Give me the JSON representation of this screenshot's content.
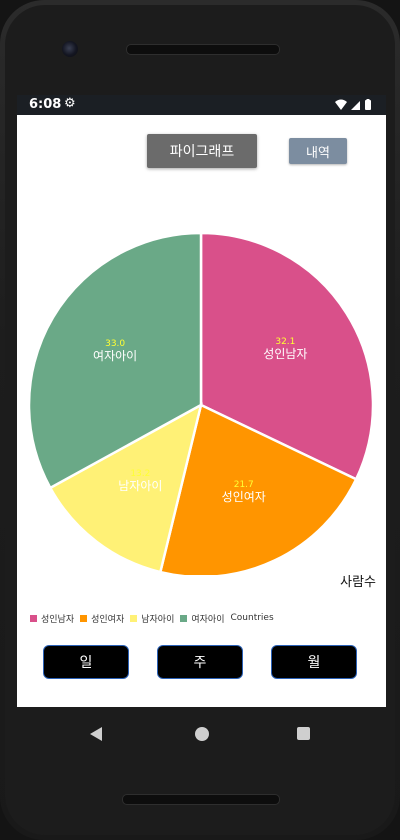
{
  "status_bar": {
    "time": "6:08",
    "icons": [
      "gear-icon",
      "wifi-icon",
      "signal-icon",
      "battery-icon"
    ]
  },
  "header": {
    "pie_button_label": "파이그래프",
    "history_button_label": "내역"
  },
  "colors": {
    "pie_button": "#6b6b6b",
    "history_button": "#7c8da0",
    "value_label": "#ffff33"
  },
  "chart_data": {
    "type": "pie",
    "description": "사람수",
    "slices": [
      {
        "label": "성인남자",
        "value": 32.1,
        "color": "#d9508a"
      },
      {
        "label": "성인여자",
        "value": 21.7,
        "color": "#ff9500"
      },
      {
        "label": "남자아이",
        "value": 13.2,
        "color": "#fff176"
      },
      {
        "label": "여자아이",
        "value": 33.0,
        "color": "#6aa987"
      }
    ],
    "legend": {
      "position": "bottom-left",
      "entries": [
        "성인남자",
        "성인여자",
        "남자아이",
        "여자아이"
      ],
      "dataset_label": "Countries"
    }
  },
  "bottom_buttons": [
    {
      "label": "일"
    },
    {
      "label": "주"
    },
    {
      "label": "월"
    }
  ],
  "nav_bar": {
    "icons": [
      "back-icon",
      "home-icon",
      "recent-apps-icon"
    ]
  }
}
